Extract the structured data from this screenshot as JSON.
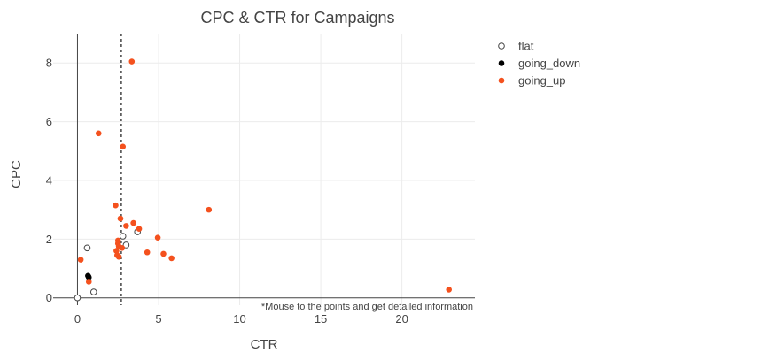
{
  "chart_data": {
    "type": "scatter",
    "title": "CPC & CTR for Campaigns",
    "xlabel": "CTR",
    "ylabel": "CPC",
    "xlim": [
      -1.5,
      24.5
    ],
    "ylim": [
      -0.25,
      9.0
    ],
    "x_ticks": [
      0,
      5,
      10,
      15,
      20
    ],
    "y_ticks": [
      0,
      2,
      4,
      6,
      8
    ],
    "grid": true,
    "legend_position": "top-right",
    "annotation": "*Mouse to the points and get detailed information",
    "reference_line": {
      "orientation": "vertical",
      "x": 2.7,
      "style": "dashed"
    },
    "series": [
      {
        "name": "flat",
        "marker": "open-circle",
        "color": "#444444",
        "points": [
          {
            "x": 0.0,
            "y": 0.0
          },
          {
            "x": 0.6,
            "y": 1.7
          },
          {
            "x": 1.0,
            "y": 0.2
          },
          {
            "x": 2.8,
            "y": 2.1
          },
          {
            "x": 3.0,
            "y": 1.8
          },
          {
            "x": 3.7,
            "y": 2.25
          }
        ]
      },
      {
        "name": "going_down",
        "marker": "filled-circle",
        "color": "#000000",
        "points": [
          {
            "x": 0.65,
            "y": 0.75
          },
          {
            "x": 0.7,
            "y": 0.7
          }
        ]
      },
      {
        "name": "going_up",
        "marker": "filled-circle",
        "color": "#f4511e",
        "points": [
          {
            "x": 3.35,
            "y": 8.05
          },
          {
            "x": 1.3,
            "y": 5.6
          },
          {
            "x": 2.8,
            "y": 5.15
          },
          {
            "x": 2.35,
            "y": 3.15
          },
          {
            "x": 2.65,
            "y": 2.7
          },
          {
            "x": 3.45,
            "y": 2.55
          },
          {
            "x": 3.0,
            "y": 2.45
          },
          {
            "x": 3.8,
            "y": 2.35
          },
          {
            "x": 8.1,
            "y": 3.0
          },
          {
            "x": 4.95,
            "y": 2.05
          },
          {
            "x": 2.5,
            "y": 1.95
          },
          {
            "x": 2.5,
            "y": 1.85
          },
          {
            "x": 2.55,
            "y": 1.75
          },
          {
            "x": 2.75,
            "y": 1.7
          },
          {
            "x": 2.4,
            "y": 1.6
          },
          {
            "x": 2.45,
            "y": 1.45
          },
          {
            "x": 2.55,
            "y": 1.4
          },
          {
            "x": 4.3,
            "y": 1.55
          },
          {
            "x": 5.3,
            "y": 1.5
          },
          {
            "x": 5.8,
            "y": 1.35
          },
          {
            "x": 0.2,
            "y": 1.3
          },
          {
            "x": 0.7,
            "y": 0.55
          },
          {
            "x": 22.9,
            "y": 0.28
          }
        ]
      }
    ]
  }
}
